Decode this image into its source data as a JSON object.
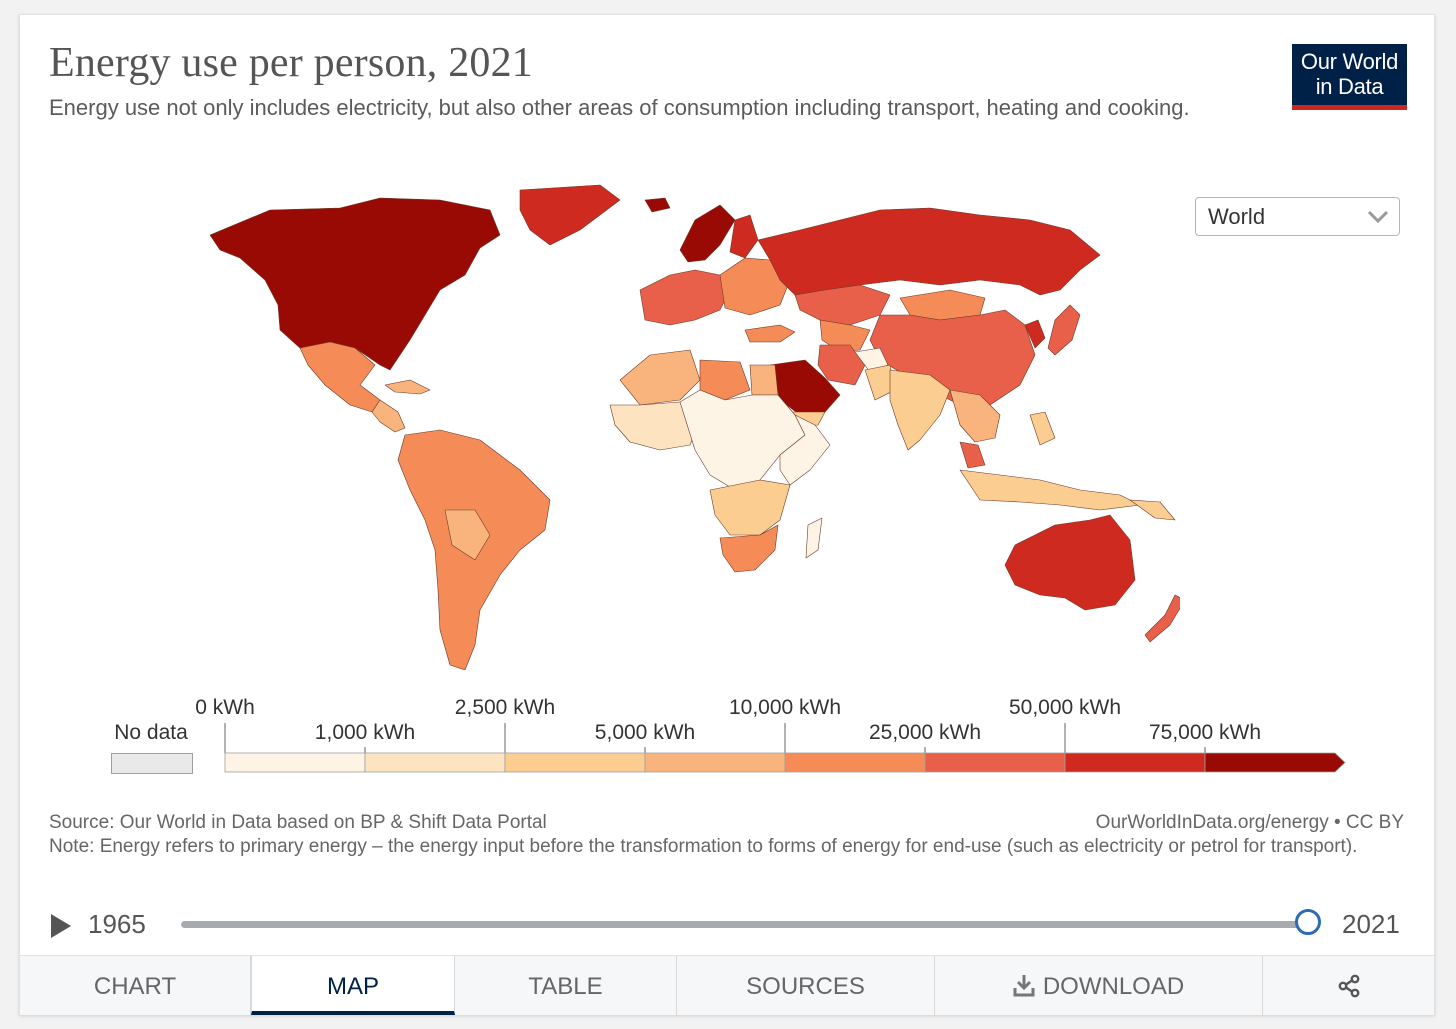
{
  "title": "Energy use per person, 2021",
  "subtitle": "Energy use not only includes electricity, but also other areas of consumption including transport, heating and cooking.",
  "logo": {
    "line1": "Our World",
    "line2": "in Data"
  },
  "region_select": {
    "value": "World"
  },
  "legend": {
    "no_data_label": "No data",
    "bins": [
      {
        "label": "0 kWh",
        "color": "#fef4e6"
      },
      {
        "label": "1,000 kWh",
        "color": "#fde3c0"
      },
      {
        "label": "2,500 kWh",
        "color": "#fbcd90"
      },
      {
        "label": "5,000 kWh",
        "color": "#f9b47d"
      },
      {
        "label": "10,000 kWh",
        "color": "#f58b57"
      },
      {
        "label": "25,000 kWh",
        "color": "#e9604a"
      },
      {
        "label": "50,000 kWh",
        "color": "#cf2a1f"
      },
      {
        "label": "75,000 kWh",
        "color": "#9a0a05"
      }
    ],
    "no_data_color": "#e9e9e9"
  },
  "source_text": "Source: Our World in Data based on BP & Shift Data Portal",
  "license_text": "OurWorldInData.org/energy • CC BY",
  "note_text": "Note: Energy refers to primary energy – the energy input before the transformation to forms of energy for end-use (such as electricity or petrol for transport).",
  "timeline": {
    "start_year": "1965",
    "end_year": "2021"
  },
  "tabs": {
    "chart": "CHART",
    "map": "MAP",
    "table": "TABLE",
    "sources": "SOURCES",
    "download": "DOWNLOAD"
  },
  "colors": {
    "brand": "#002147",
    "accent": "#ce261e",
    "slider": "#2d6bb8"
  },
  "regions": [
    {
      "name": "Canada & USA",
      "color": "#9a0a05"
    },
    {
      "name": "Greenland",
      "color": "#cf2a1f"
    },
    {
      "name": "Mexico",
      "color": "#f58b57"
    },
    {
      "name": "Central America",
      "color": "#f9b47d"
    },
    {
      "name": "Caribbean",
      "color": "#f9b47d"
    },
    {
      "name": "South America",
      "color": "#f58b57"
    },
    {
      "name": "Bolivia & Paraguay",
      "color": "#f9b47d"
    },
    {
      "name": "Iceland",
      "color": "#9a0a05"
    },
    {
      "name": "Scandinavia",
      "color": "#9a0a05"
    },
    {
      "name": "Finland",
      "color": "#cf2a1f"
    },
    {
      "name": "Western Europe",
      "color": "#e9604a"
    },
    {
      "name": "Eastern Europe",
      "color": "#f58b57"
    },
    {
      "name": "Russia",
      "color": "#cf2a1f"
    },
    {
      "name": "Kazakhstan",
      "color": "#e9604a"
    },
    {
      "name": "Central Asia",
      "color": "#f58b57"
    },
    {
      "name": "Mongolia",
      "color": "#f58b57"
    },
    {
      "name": "China",
      "color": "#e9604a"
    },
    {
      "name": "Korea",
      "color": "#cf2a1f"
    },
    {
      "name": "Japan",
      "color": "#e9604a"
    },
    {
      "name": "Turkey",
      "color": "#f58b57"
    },
    {
      "name": "Iran",
      "color": "#e9604a"
    },
    {
      "name": "Arabian Peninsula",
      "color": "#9a0a05"
    },
    {
      "name": "Yemen & Oman coast",
      "color": "#fbcd90"
    },
    {
      "name": "Afghanistan",
      "color": "#fef4e6"
    },
    {
      "name": "Pakistan",
      "color": "#fbcd90"
    },
    {
      "name": "India",
      "color": "#fbcd90"
    },
    {
      "name": "Southeast Asia",
      "color": "#f9b47d"
    },
    {
      "name": "Malaysia",
      "color": "#e9604a"
    },
    {
      "name": "Indonesia",
      "color": "#fbcd90"
    },
    {
      "name": "Philippines",
      "color": "#fbcd90"
    },
    {
      "name": "North Africa west",
      "color": "#f9b47d"
    },
    {
      "name": "Libya",
      "color": "#f58b57"
    },
    {
      "name": "Egypt",
      "color": "#f9b47d"
    },
    {
      "name": "West Africa",
      "color": "#fde3c0"
    },
    {
      "name": "Central Africa",
      "color": "#fef4e6"
    },
    {
      "name": "East Africa",
      "color": "#fef4e6"
    },
    {
      "name": "Southern Africa",
      "color": "#fbcd90"
    },
    {
      "name": "South Africa",
      "color": "#f58b57"
    },
    {
      "name": "Madagascar",
      "color": "#fef4e6"
    },
    {
      "name": "Australia",
      "color": "#cf2a1f"
    },
    {
      "name": "New Zealand",
      "color": "#e9604a"
    },
    {
      "name": "Papua New Guinea",
      "color": "#fbcd90"
    }
  ]
}
